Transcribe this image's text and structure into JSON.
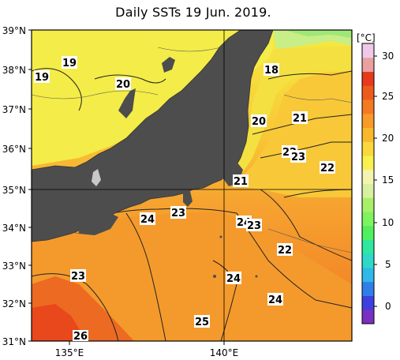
{
  "title": "Daily SSTs 19 Jun. 2019.",
  "lat_labels": [
    "39°N",
    "38°N",
    "37°N",
    "36°N",
    "35°N",
    "34°N",
    "33°N",
    "32°N",
    "31°N"
  ],
  "lon_labels": [
    "135°E",
    "140°E"
  ],
  "colorbar": {
    "unit": "[°C]",
    "ticks": [
      "30",
      "25",
      "20",
      "15",
      "10",
      "5",
      "0"
    ],
    "colors": [
      "#7b2fbf",
      "#3f3fe0",
      "#2f7fe8",
      "#2fb8e8",
      "#2fd8c8",
      "#2fe89f",
      "#4fef5f",
      "#7ff25f",
      "#a8f068",
      "#d8f0a0",
      "#f4f4b0",
      "#f8f050",
      "#f8d83a",
      "#f8b82e",
      "#f89a28",
      "#f47a22",
      "#ee5a1e",
      "#e63a1a",
      "#e8a0a0",
      "#f0c8e8"
    ]
  },
  "isotherm_labels": [
    "19",
    "19",
    "18",
    "20",
    "20",
    "21",
    "22",
    "23",
    "22",
    "21",
    "23",
    "24",
    "24",
    "23",
    "22",
    "23",
    "24",
    "24",
    "25",
    "26"
  ]
}
